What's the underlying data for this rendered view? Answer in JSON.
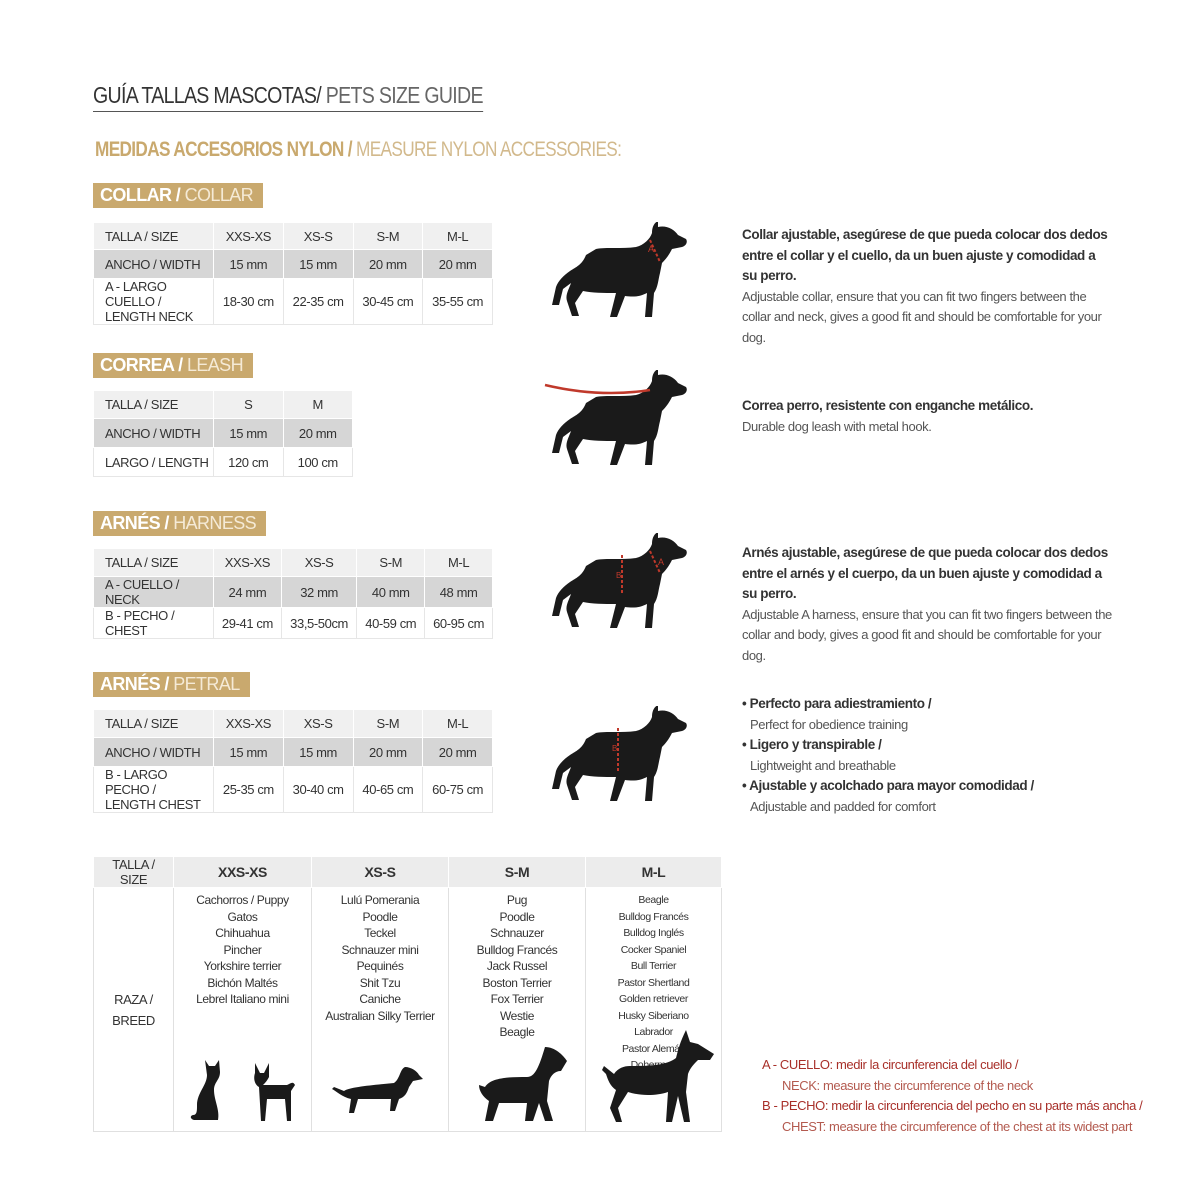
{
  "title": {
    "es": "GUÍA TALLAS MASCOTAS/",
    "en": " PETS SIZE GUIDE"
  },
  "subtitle": {
    "es": "MEDIDAS ACCESORIOS NYLON /",
    "en": " MEASURE NYLON ACCESSORIES:"
  },
  "colors": {
    "gold": "#c9a96e",
    "red": "#a8302a",
    "silhouette": "#1a1a1a"
  },
  "collar": {
    "tag_es": "COLLAR /",
    "tag_en": " COLLAR",
    "header": [
      "TALLA / SIZE",
      "XXS-XS",
      "XS-S",
      "S-M",
      "M-L"
    ],
    "rows": [
      [
        "ANCHO / WIDTH",
        "15 mm",
        "15 mm",
        "20 mm",
        "20 mm"
      ],
      [
        "A - LARGO CUELLO / LENGTH NECK",
        "18-30 cm",
        "22-35 cm",
        "30-45 cm",
        "35-55 cm"
      ]
    ],
    "desc_es": "Collar ajustable, asegúrese de que pueda colocar dos dedos entre el collar y el cuello, da un buen ajuste y comodidad a su perro.",
    "desc_en": "Adjustable collar, ensure that you can fit two fingers between the collar and neck, gives a good fit and should be comfortable for your dog."
  },
  "leash": {
    "tag_es": "CORREA /",
    "tag_en": " LEASH",
    "header": [
      "TALLA / SIZE",
      "S",
      "M"
    ],
    "rows": [
      [
        "ANCHO / WIDTH",
        "15 mm",
        "20 mm"
      ],
      [
        "LARGO / LENGTH",
        "120 cm",
        "100 cm"
      ]
    ],
    "desc_es": "Correa perro, resistente con enganche metálico.",
    "desc_en": "Durable dog leash with metal hook."
  },
  "harness": {
    "tag_es": "ARNÉS /",
    "tag_en": " HARNESS",
    "header": [
      "TALLA / SIZE",
      "XXS-XS",
      "XS-S",
      "S-M",
      "M-L"
    ],
    "rows": [
      [
        "A - CUELLO / NECK",
        "24 mm",
        "32 mm",
        "40 mm",
        "48 mm"
      ],
      [
        "B - PECHO / CHEST",
        "29-41 cm",
        "33,5-50cm",
        "40-59 cm",
        "60-95 cm"
      ]
    ],
    "desc_es": "Arnés ajustable, asegúrese de que pueda colocar dos dedos entre el arnés y el cuerpo, da un buen ajuste y comodidad a su perro.",
    "desc_en": "Adjustable A harness, ensure that you can fit two fingers between the collar and body, gives a good fit and should be comfortable for your dog."
  },
  "petral": {
    "tag_es": "ARNÉS /",
    "tag_en": " PETRAL",
    "header": [
      "TALLA / SIZE",
      "XXS-XS",
      "XS-S",
      "S-M",
      "M-L"
    ],
    "rows": [
      [
        "ANCHO / WIDTH",
        "15 mm",
        "15 mm",
        "20 mm",
        "20 mm"
      ],
      [
        "B - LARGO PECHO / LENGTH CHEST",
        "25-35 cm",
        "30-40 cm",
        "40-65 cm",
        "60-75 cm"
      ]
    ],
    "bullets": [
      {
        "es": "• Perfecto para adiestramiento /",
        "en": "Perfect for obedience training"
      },
      {
        "es": "• Ligero y transpirable /",
        "en": "Lightweight and breathable"
      },
      {
        "es": "• Ajustable y acolchado para mayor comodidad /",
        "en": "Adjustable and padded for comfort"
      }
    ]
  },
  "breeds": {
    "header": [
      "TALLA /  SIZE",
      "XXS-XS",
      "XS-S",
      "S-M",
      "M-L"
    ],
    "row_label": "RAZA / BREED",
    "lists": [
      [
        "Cachorros / Puppy",
        "Gatos",
        "Chihuahua",
        "Pincher",
        "Yorkshire terrier",
        "Bichón Maltés",
        "Lebrel Italiano mini"
      ],
      [
        "Lulú Pomerania",
        "Poodle",
        "Teckel",
        "Schnauzer mini",
        "Pequinés",
        "Shit Tzu",
        "Caniche",
        "Australian Silky Terrier"
      ],
      [
        "Pug",
        "Poodle",
        "Schnauzer",
        "Bulldog Francés",
        "Jack Russel",
        "Boston Terrier",
        "Fox Terrier",
        "Westie",
        "Beagle"
      ],
      [
        "Beagle",
        "Bulldog Francés",
        "Bulldog Inglés",
        "Cocker Spaniel",
        "Bull Terrier",
        "Pastor Shertland",
        "Golden retriever",
        "Husky Siberiano",
        "Labrador",
        "Pastor Alemán",
        "Doberman"
      ]
    ]
  },
  "legend": {
    "a_es": "A - CUELLO: medir la circunferencia del cuello /",
    "a_en": "NECK: measure the circumference of the neck",
    "b_es": "B - PECHO: medir la circunferencia del pecho en su parte más ancha /",
    "b_en": "CHEST: measure the circumference of the chest at its widest part"
  },
  "markers": {
    "a": "A",
    "b": "B"
  }
}
